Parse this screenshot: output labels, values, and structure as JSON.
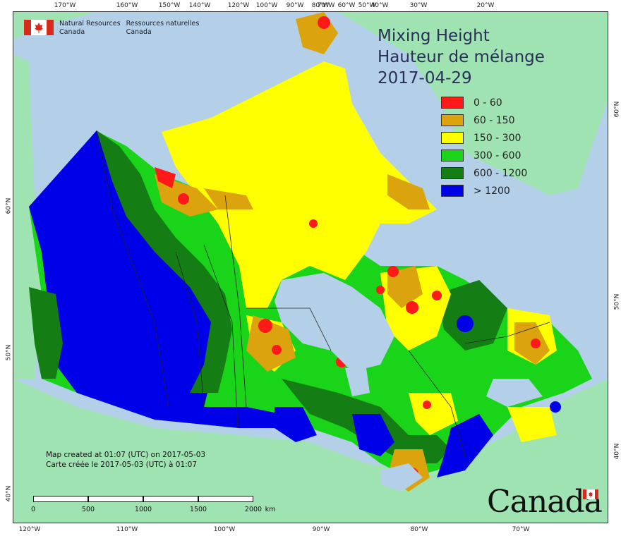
{
  "agency": {
    "name_en_line1": "Natural Resources",
    "name_en_line2": "Canada",
    "name_fr_line1": "Ressources naturelles",
    "name_fr_line2": "Canada"
  },
  "title": {
    "line1": "Mixing Height",
    "line2": "Hauteur de mélange",
    "date": "2017-04-29"
  },
  "legend": [
    {
      "label": "0 - 60",
      "color": "#ff1a1a"
    },
    {
      "label": "60 - 150",
      "color": "#dba40f"
    },
    {
      "label": "150 - 300",
      "color": "#ffff00"
    },
    {
      "label": "300 - 600",
      "color": "#19d419"
    },
    {
      "label": "600 - 1200",
      "color": "#147d14"
    },
    {
      "label": "> 1200",
      "color": "#0000e8"
    }
  ],
  "credits": {
    "en": "Map created at 01:07 (UTC) on 2017-05-03",
    "fr": "Carte créée le 2017-05-03 (UTC) à 01:07"
  },
  "scale": {
    "labels": [
      "0",
      "500",
      "1000",
      "1500",
      "2000"
    ],
    "unit": "km"
  },
  "wordmark": "Canada",
  "ticks": {
    "top": [
      "170°W",
      "160°W",
      "150°W",
      "140°W",
      "120°W",
      "100°W",
      "90°W",
      "80°W",
      "70°W",
      "60°W",
      "50°W",
      "40°W",
      "30°W",
      "20°W"
    ],
    "bottom": [
      "120°W",
      "110°W",
      "100°W",
      "90°W",
      "80°W",
      "70°W"
    ],
    "left": [
      "60°N",
      "50°N",
      "40°N"
    ],
    "right": [
      "60°N",
      "50°N",
      "40°N"
    ]
  },
  "colors": {
    "water": "#b4cfe8",
    "land_outside": "#9fe3b3",
    "border": "#333333"
  }
}
